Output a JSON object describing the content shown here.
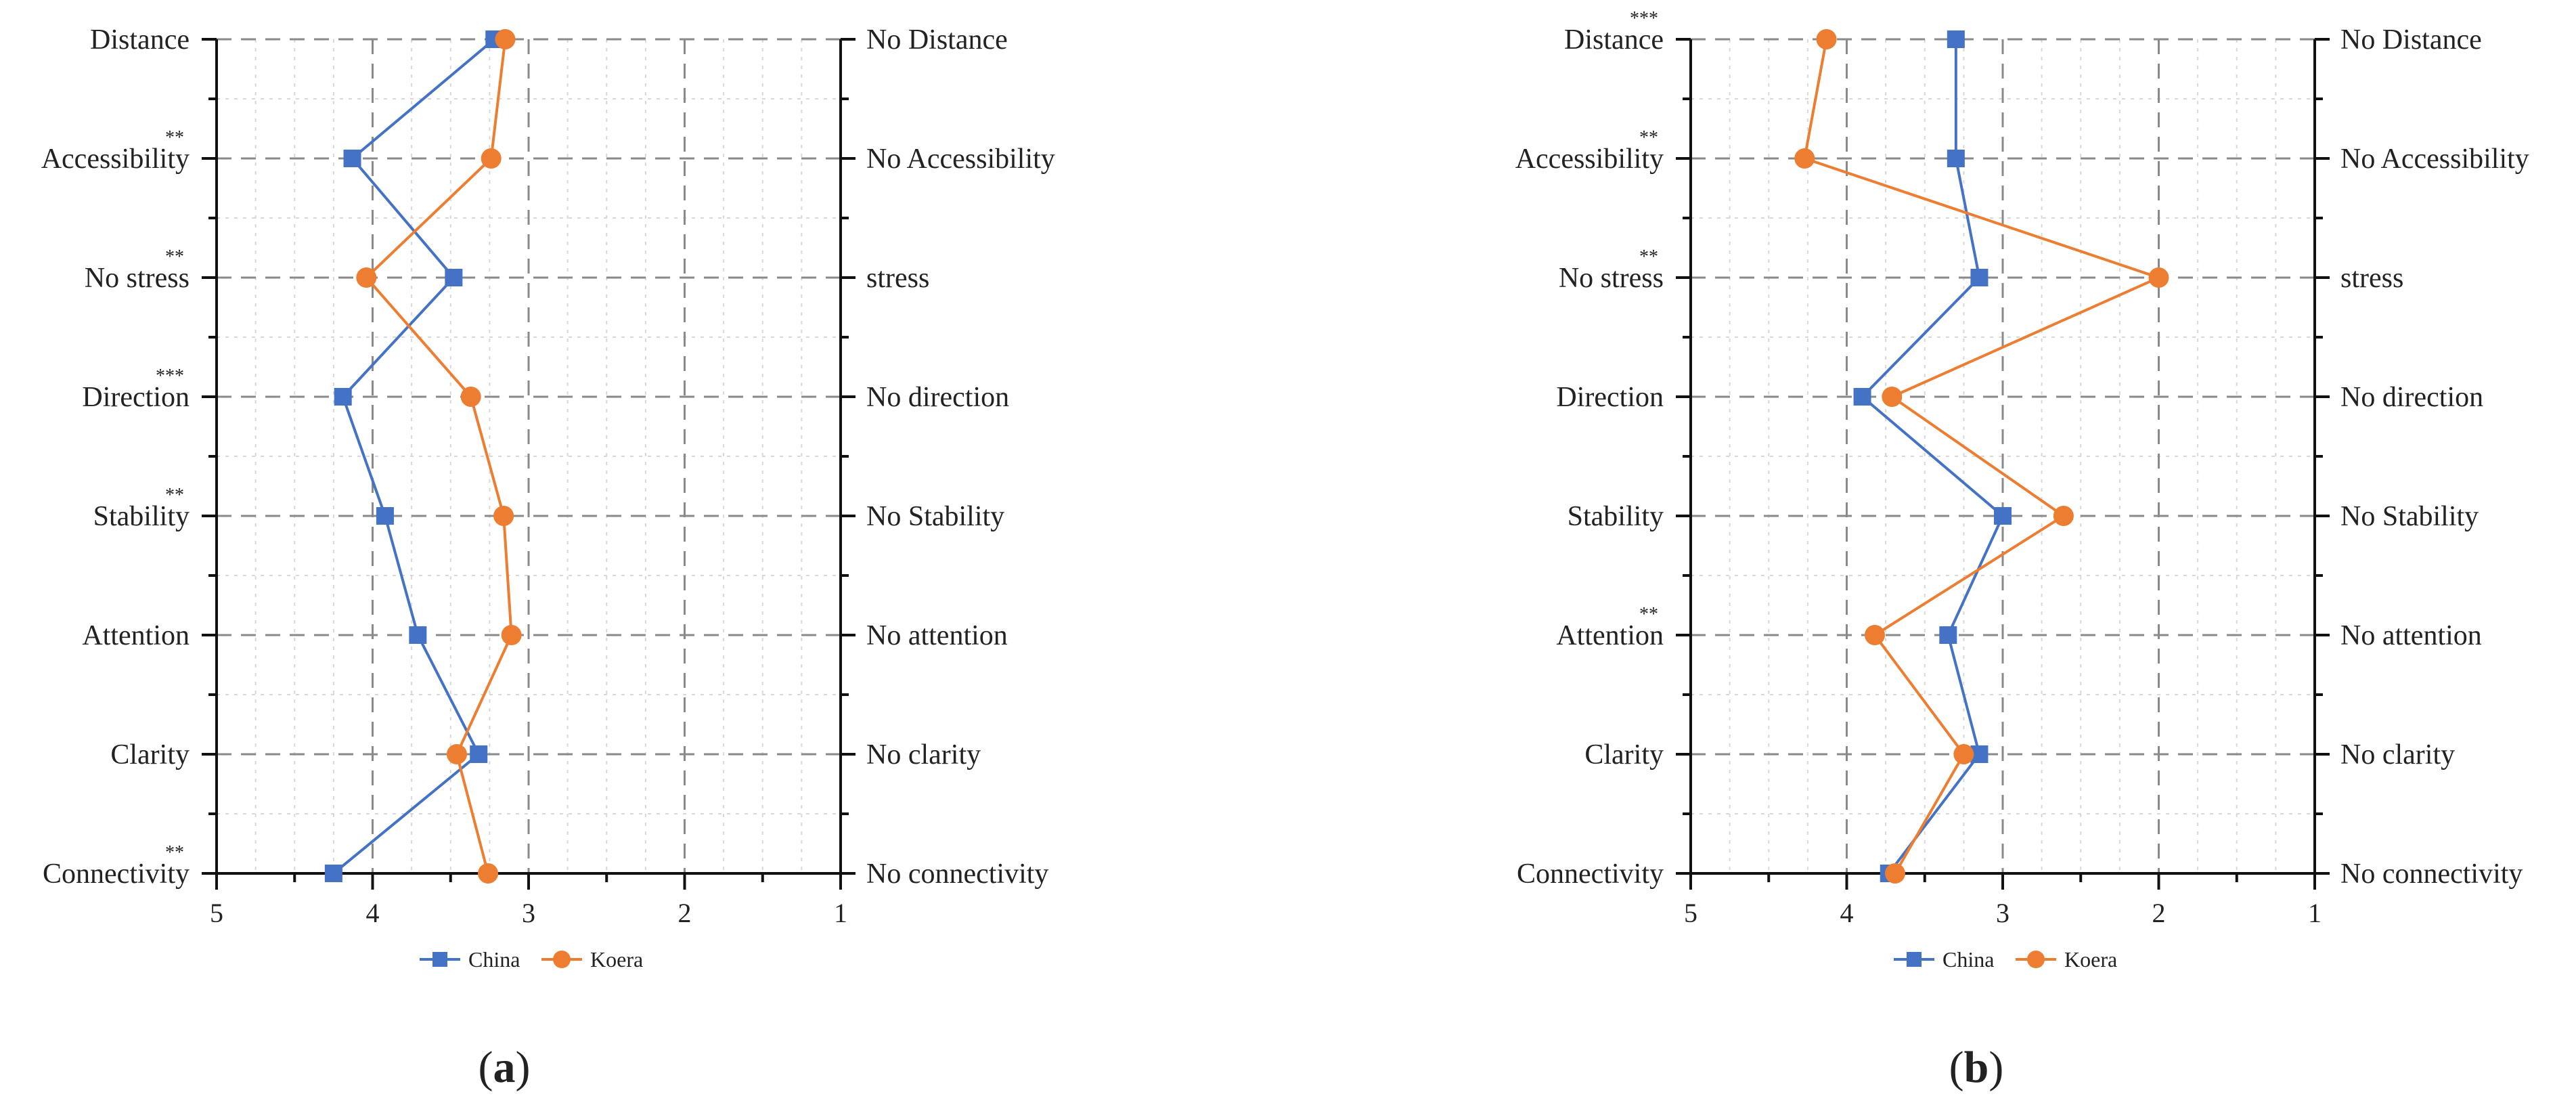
{
  "chart_data": [
    {
      "type": "line",
      "panel_label": "a",
      "categories": [
        "Distance",
        "Accessibility",
        "No stress",
        "Direction",
        "Stability",
        "Attention",
        "Clarity",
        "Connectivity"
      ],
      "right_labels": [
        "No Distance",
        "No Accessibility",
        "stress",
        "No direction",
        "No Stability",
        "No attention",
        "No clarity",
        "No connectivity"
      ],
      "significance": [
        "",
        "**",
        "**",
        "***",
        "**",
        "",
        "",
        "**"
      ],
      "xlim": [
        5,
        1
      ],
      "xticks": [
        "5",
        "4",
        "3",
        "2",
        "1"
      ],
      "grid": true,
      "legend_position": "bottom",
      "series": [
        {
          "name": "China",
          "color": "#4472C4",
          "marker": "square",
          "values": [
            3.22,
            4.13,
            3.48,
            4.19,
            3.92,
            3.71,
            3.32,
            4.25
          ]
        },
        {
          "name": "Koera",
          "color": "#ED7D31",
          "marker": "circle",
          "values": [
            3.15,
            3.24,
            4.04,
            3.37,
            3.16,
            3.11,
            3.46,
            3.26
          ]
        }
      ]
    },
    {
      "type": "line",
      "panel_label": "b",
      "categories": [
        "Distance",
        "Accessibility",
        "No stress",
        "Direction",
        "Stability",
        "Attention",
        "Clarity",
        "Connectivity"
      ],
      "right_labels": [
        "No Distance",
        "No Accessibility",
        "stress",
        "No direction",
        "No Stability",
        "No attention",
        "No clarity",
        "No connectivity"
      ],
      "significance": [
        "***",
        "**",
        "**",
        "",
        "",
        "**",
        "",
        ""
      ],
      "xlim": [
        5,
        1
      ],
      "xticks": [
        "5",
        "4",
        "3",
        "2",
        "1"
      ],
      "grid": true,
      "legend_position": "bottom",
      "series": [
        {
          "name": "China",
          "color": "#4472C4",
          "marker": "square",
          "values": [
            3.3,
            3.3,
            3.15,
            3.9,
            3.0,
            3.35,
            3.15,
            3.73
          ]
        },
        {
          "name": "Koera",
          "color": "#ED7D31",
          "marker": "circle",
          "values": [
            4.13,
            4.27,
            2.0,
            3.71,
            2.61,
            3.82,
            3.25,
            3.69
          ]
        }
      ]
    }
  ]
}
